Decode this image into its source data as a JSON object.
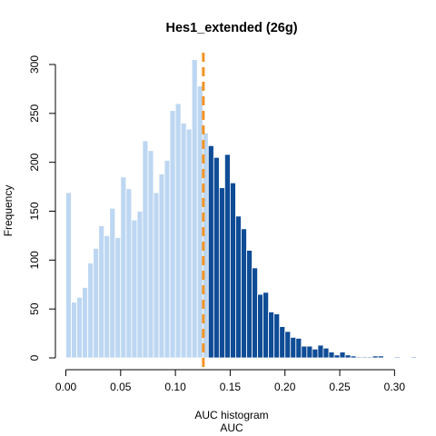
{
  "chart_data": {
    "type": "histogram",
    "title": "Hes1_extended (26g)",
    "xlabel_line1": "AUC histogram",
    "xlabel_line2": "AUC",
    "ylabel": "Frequency",
    "bin_width": 0.005,
    "x_start": 0.0,
    "xlim": [
      0.0,
      0.325
    ],
    "ylim": [
      0,
      300
    ],
    "x_ticks": [
      "0.00",
      "0.05",
      "0.10",
      "0.15",
      "0.20",
      "0.25",
      "0.30"
    ],
    "y_ticks": [
      "0",
      "50",
      "100",
      "150",
      "200",
      "250",
      "300"
    ],
    "threshold": 0.1255,
    "colors": {
      "below_threshold": "#bdd7f2",
      "above_threshold": "#0f4c96",
      "threshold_line": "#f39424"
    },
    "values": [
      169,
      57,
      62,
      72,
      97,
      112,
      135,
      125,
      153,
      123,
      185,
      173,
      141,
      150,
      222,
      212,
      169,
      188,
      202,
      253,
      260,
      240,
      234,
      305,
      278,
      230,
      217,
      205,
      174,
      208,
      179,
      145,
      132,
      110,
      92,
      65,
      67,
      47,
      45,
      32,
      27,
      21,
      20,
      12,
      12,
      9,
      13,
      10,
      6,
      3,
      6,
      3,
      2,
      1,
      1,
      1,
      2,
      2,
      0,
      0,
      1,
      0,
      0,
      1
    ]
  }
}
